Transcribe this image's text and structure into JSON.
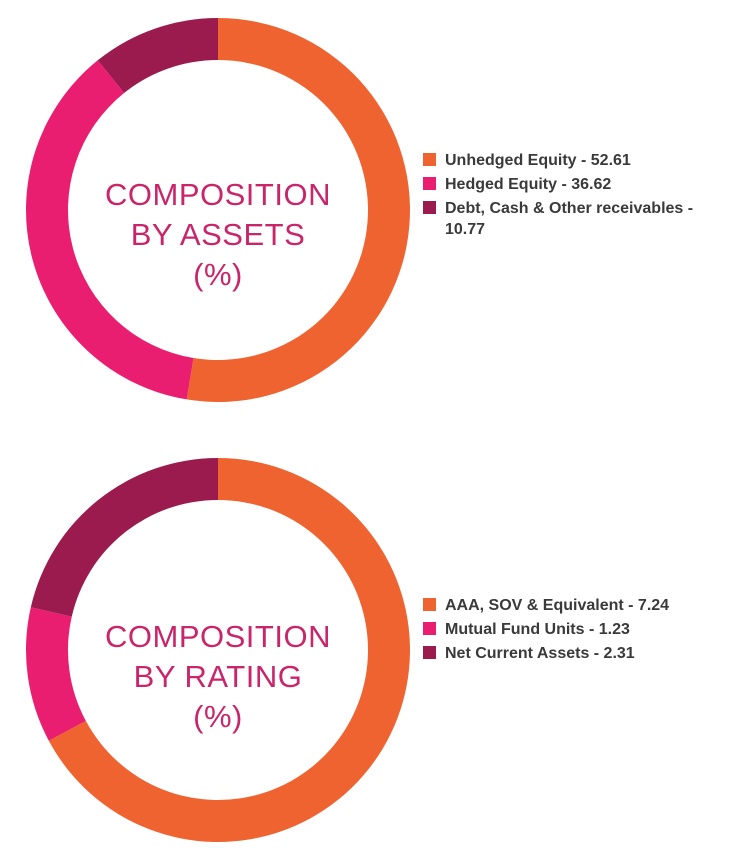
{
  "colors": {
    "orange": "#ee6330",
    "pink": "#e91e70",
    "maroon": "#9b1b4f",
    "label": "#c9256b",
    "text": "#3a3a3a"
  },
  "chart_data": [
    {
      "type": "pie",
      "variant": "donut",
      "center_label": [
        "COMPOSITION",
        "BY ASSETS",
        "(%)"
      ],
      "legend_placement": "right",
      "series": [
        {
          "name": "Unhedged Equity",
          "value": 52.61,
          "color": "#ee6330",
          "legend_text": "Unhedged Equity - 52.61"
        },
        {
          "name": "Hedged Equity",
          "value": 36.62,
          "color": "#e91e70",
          "legend_text": "Hedged Equity - 36.62"
        },
        {
          "name": "Debt, Cash & Other receivables",
          "value": 10.77,
          "color": "#9b1b4f",
          "legend_text": "Debt, Cash & Other receivables - 10.77"
        }
      ]
    },
    {
      "type": "pie",
      "variant": "donut",
      "center_label": [
        "COMPOSITION",
        "BY RATING",
        "(%)"
      ],
      "legend_placement": "right",
      "series": [
        {
          "name": "AAA, SOV & Equivalent",
          "value": 7.24,
          "color": "#ee6330",
          "legend_text": "AAA, SOV & Equivalent - 7.24"
        },
        {
          "name": "Mutual Fund Units",
          "value": 1.23,
          "color": "#e91e70",
          "legend_text": "Mutual Fund Units - 1.23"
        },
        {
          "name": "Net Current Assets",
          "value": 2.31,
          "color": "#9b1b4f",
          "legend_text": "Net Current Assets - 2.31"
        }
      ]
    }
  ]
}
